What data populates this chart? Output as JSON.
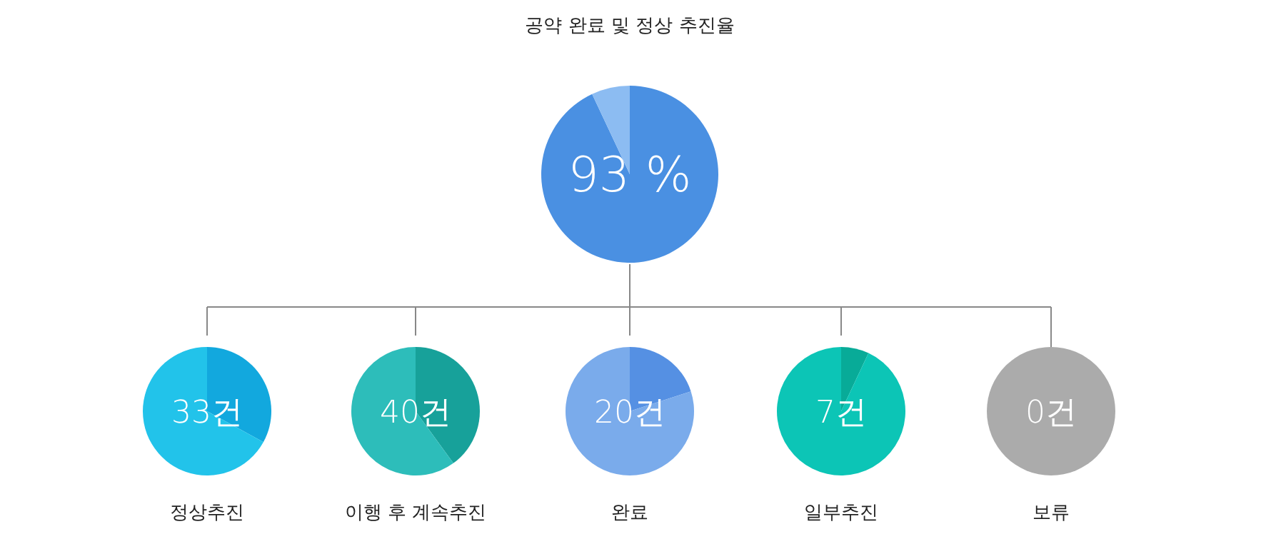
{
  "chart_data": [
    {
      "type": "pie",
      "title": "공약 완료 및 정상 추진율",
      "categories": [
        null,
        null
      ],
      "values": [
        93,
        7
      ],
      "colors": [
        "#4a90e2",
        "#8cbcf2"
      ],
      "annotations": [
        "93 %"
      ]
    },
    {
      "type": "pie",
      "title": "정상추진",
      "categories": [
        null,
        null
      ],
      "values": [
        33,
        67
      ],
      "colors": [
        "#12a8de",
        "#22c3ea"
      ],
      "annotations": [
        "33건"
      ]
    },
    {
      "type": "pie",
      "title": "이행 후 계속추진",
      "categories": [
        null,
        null
      ],
      "values": [
        40,
        60
      ],
      "colors": [
        "#17a19a",
        "#2dbdba"
      ],
      "annotations": [
        "40건"
      ]
    },
    {
      "type": "pie",
      "title": "완료",
      "categories": [
        null,
        null
      ],
      "values": [
        20,
        80
      ],
      "colors": [
        "#5590e3",
        "#7aabeb"
      ],
      "annotations": [
        "20건"
      ]
    },
    {
      "type": "pie",
      "title": "일부추진",
      "categories": [
        null,
        null
      ],
      "values": [
        7,
        93
      ],
      "colors": [
        "#08ab98",
        "#0cc5b6"
      ],
      "annotations": [
        "7건"
      ]
    },
    {
      "type": "pie",
      "title": "보류",
      "categories": [
        null,
        null
      ],
      "values": [
        0,
        100
      ],
      "colors": [
        "#8a8a8a",
        "#ababab"
      ],
      "annotations": [
        "0건"
      ]
    }
  ]
}
